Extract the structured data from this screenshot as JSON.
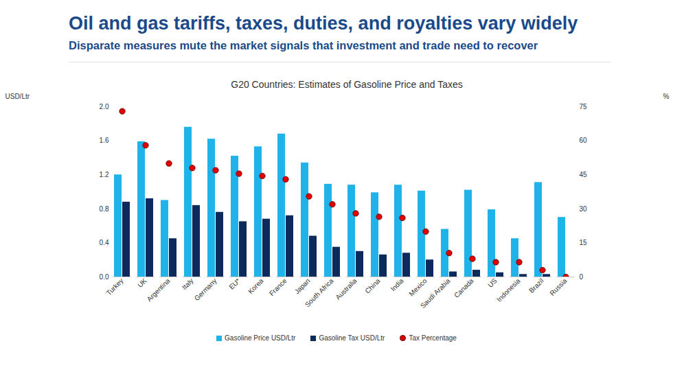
{
  "chart_data": {
    "type": "bar",
    "title": "Oil and gas tariffs, taxes, duties, and royalties vary widely",
    "subtitle": "Disparate measures mute the market signals that investment and trade need to recover",
    "chart_title": "G20 Countries: Estimates of Gasoline Price and Taxes",
    "y_label": "USD/Ltr",
    "y2_label": "%",
    "categories": [
      "Turkey",
      "UK",
      "Argentina",
      "Italy",
      "Germany",
      "EU*",
      "Korea",
      "France",
      "Japan",
      "South Africa",
      "Australia",
      "China",
      "India",
      "Mexico",
      "Saudi Arabia",
      "Canada",
      "US",
      "Indonesia",
      "Brazil",
      "Russia"
    ],
    "series": [
      {
        "name": "Gasoline Price USD/Ltr",
        "type": "bar",
        "color": "#1fb3ea",
        "values": [
          1.2,
          1.59,
          0.9,
          1.76,
          1.62,
          1.42,
          1.53,
          1.68,
          1.34,
          1.09,
          1.08,
          0.99,
          1.08,
          1.01,
          0.56,
          1.02,
          0.79,
          0.45,
          1.11,
          0.7
        ]
      },
      {
        "name": "Gasoline Tax USD/Ltr",
        "type": "bar",
        "color": "#0c2a5c",
        "values": [
          0.88,
          0.92,
          0.45,
          0.84,
          0.76,
          0.65,
          0.68,
          0.72,
          0.48,
          0.35,
          0.3,
          0.26,
          0.28,
          0.2,
          0.06,
          0.08,
          0.05,
          0.03,
          0.03,
          0.0
        ]
      },
      {
        "name": "Tax Percentage",
        "type": "scatter",
        "axis": "y2",
        "marker": "circle",
        "color": "#e00000",
        "values": [
          73,
          58,
          50,
          48,
          47,
          45.5,
          44.5,
          43,
          35.5,
          32,
          28,
          26.5,
          26,
          20,
          10.5,
          8,
          6.5,
          6.5,
          3,
          0
        ]
      }
    ],
    "ylim": [
      0,
      2
    ],
    "yticks": [
      {
        "value": 0,
        "label": "0.0"
      },
      0.4,
      0.8,
      1.2,
      1.6,
      {
        "value": 2,
        "label": "2.0"
      }
    ],
    "y2lim": [
      0,
      75
    ],
    "y2ticks": [
      0,
      15,
      30,
      45,
      60,
      75
    ],
    "legend": "bottom",
    "grid": false
  }
}
